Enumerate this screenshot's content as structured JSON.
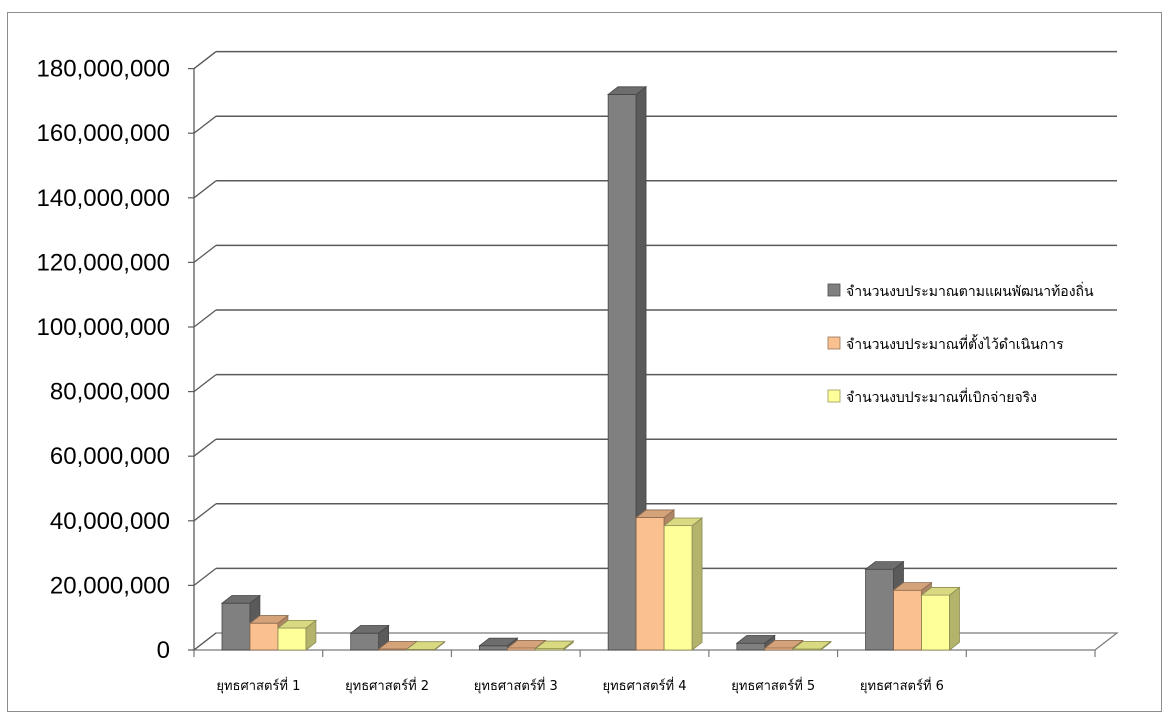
{
  "chart_data": {
    "type": "bar",
    "title": "",
    "xlabel": "",
    "ylabel": "",
    "ylim": [
      0,
      180000000
    ],
    "yticks": [
      0,
      20000000,
      40000000,
      60000000,
      80000000,
      100000000,
      120000000,
      140000000,
      160000000,
      180000000
    ],
    "ytick_labels": [
      "0",
      "20,000,000",
      "40,000,000",
      "60,000,000",
      "80,000,000",
      "100,000,000",
      "120,000,000",
      "140,000,000",
      "160,000,000",
      "180,000,000"
    ],
    "categories": [
      "ยุทธศาสตร์ที่ 1",
      "ยุทธศาสตร์ที่ 2",
      "ยุทธศาสตร์ที่ 3",
      "ยุทธศาสตร์ที่ 4",
      "ยุทธศาสตร์ที่ 5",
      "ยุทธศาสตร์ที่ 6"
    ],
    "series": [
      {
        "name": "จำนวนงบประมาณตามแผนพัฒนาท้องถิ่น",
        "color": "#808080",
        "values": [
          14500000,
          5200000,
          1300000,
          172000000,
          2100000,
          25000000
        ]
      },
      {
        "name": "จำนวนงบประมาณที่ตั้งไว้ดำเนินการ",
        "color": "#fac090",
        "values": [
          8300000,
          300000,
          600000,
          41000000,
          600000,
          18500000
        ]
      },
      {
        "name": "จำนวนงบประมาณที่เบิกจ่ายจริง",
        "color": "#ffff99",
        "values": [
          6800000,
          200000,
          400000,
          38500000,
          300000,
          17000000
        ]
      }
    ],
    "grid": true,
    "legend_position": "right",
    "style": "3d-clustered-column"
  }
}
